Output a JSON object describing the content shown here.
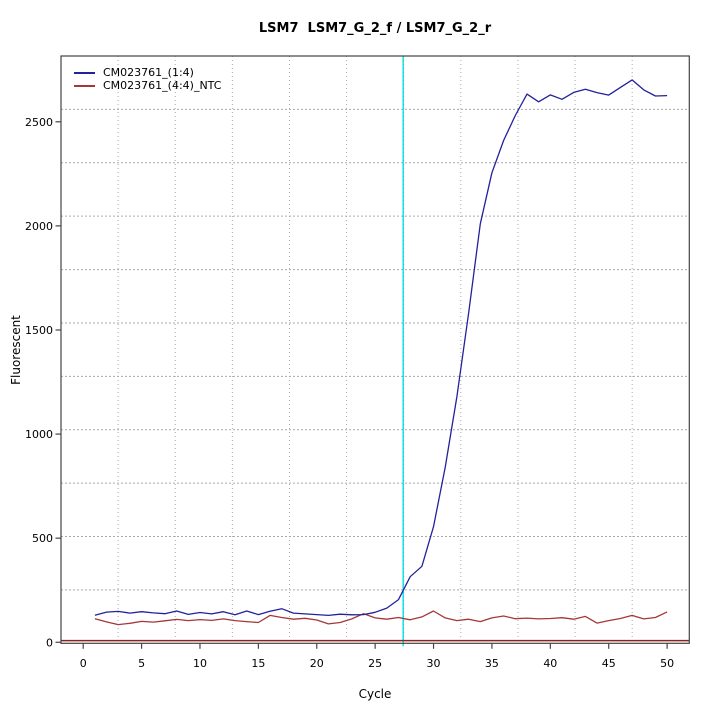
{
  "window": {
    "background": "#ffffff"
  },
  "chart_data": {
    "type": "line",
    "title": "LSM7  LSM7_G_2_f / LSM7_G_2_r",
    "xlabel": "Cycle",
    "ylabel": "Fluorescent",
    "xlim": [
      -1.9,
      51.9
    ],
    "ylim": [
      -5,
      2816
    ],
    "xticks": [
      0,
      5,
      10,
      15,
      20,
      25,
      30,
      35,
      40,
      45,
      50
    ],
    "yticks": [
      0,
      500,
      1000,
      1500,
      2000,
      2500
    ],
    "grid": {
      "nx": 11,
      "ny": 11,
      "color": "#aaaaaa",
      "style": "dotted"
    },
    "threshold_line": {
      "orientation": "vertical",
      "x": 27.4,
      "color": "#00e0e0"
    },
    "zero_line": {
      "orientation": "horizontal",
      "y": 8,
      "color": "#8b2222"
    },
    "x_start_cycle": 1,
    "legend_position": "top-left",
    "series": [
      {
        "name": "CM023761_(1:4)",
        "color": "#22229b",
        "values": [
          130,
          145,
          148,
          140,
          147,
          141,
          137,
          150,
          134,
          143,
          136,
          147,
          132,
          150,
          133,
          149,
          161,
          140,
          136,
          133,
          129,
          135,
          132,
          133,
          144,
          164,
          205,
          315,
          365,
          555,
          840,
          1180,
          1580,
          2010,
          2255,
          2410,
          2530,
          2633,
          2596,
          2629,
          2608,
          2641,
          2656,
          2640,
          2628,
          2665,
          2701,
          2653,
          2624,
          2626
        ]
      },
      {
        "name": "CM023761_(4:4)_NTC",
        "color": "#a43838",
        "values": [
          113,
          98,
          85,
          91,
          100,
          97,
          103,
          110,
          104,
          109,
          105,
          112,
          104,
          99,
          95,
          129,
          119,
          111,
          115,
          107,
          88,
          95,
          112,
          137,
          117,
          111,
          119,
          108,
          122,
          150,
          117,
          104,
          111,
          99,
          117,
          126,
          113,
          116,
          112,
          114,
          118,
          111,
          124,
          92,
          104,
          114,
          129,
          112,
          119,
          146
        ]
      }
    ],
    "axis_color": "#444444",
    "tick_label_color": "#000000"
  }
}
